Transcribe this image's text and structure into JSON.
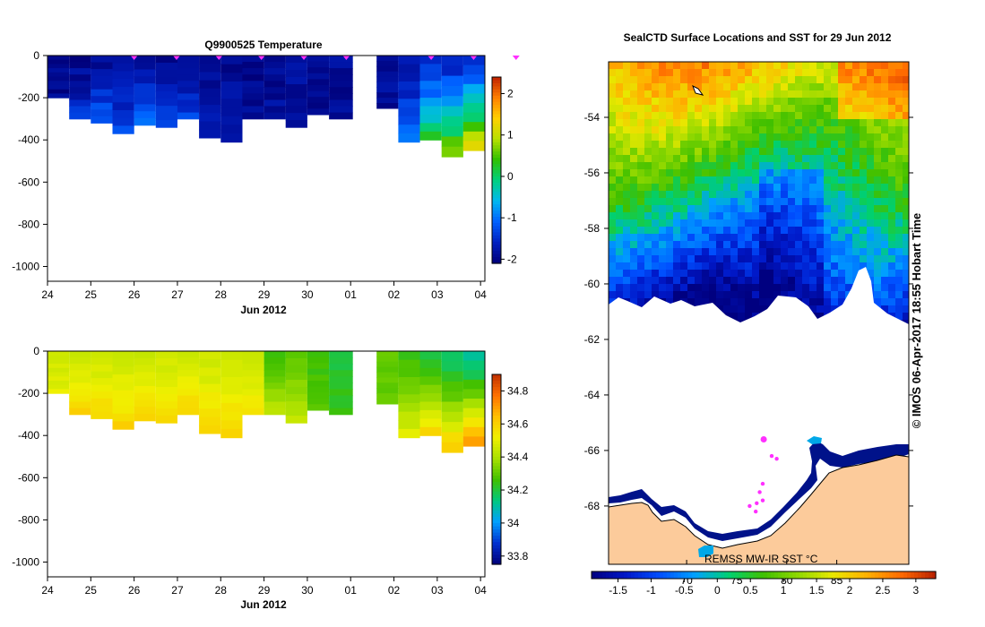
{
  "colors": {
    "land": "#fccb9b",
    "profile_marker": "#ff30ff",
    "sst_scale": [
      "#000080",
      "#0018c8",
      "#0050ff",
      "#00a0ff",
      "#00d070",
      "#40c000",
      "#90d800",
      "#e8e800",
      "#ffb000",
      "#ff6a00",
      "#b82000"
    ],
    "temp_scale": [
      "#00007a",
      "#0020c0",
      "#0060ff",
      "#00b8f0",
      "#00d080",
      "#30c000",
      "#b8e000",
      "#ffd000",
      "#ff8000",
      "#c02000"
    ],
    "sal_scale": [
      "#00007a",
      "#0030d0",
      "#00a0ff",
      "#00c880",
      "#40c000",
      "#a8e000",
      "#f0f000",
      "#ffc000",
      "#ff7000",
      "#c03000"
    ]
  },
  "chart_data": [
    {
      "type": "heatmap",
      "panel": "temperature-section",
      "title": "Q9900525  Temperature",
      "xlabel": "Jun 2012",
      "x_tick_labels": [
        "24",
        "25",
        "26",
        "27",
        "28",
        "29",
        "30",
        "01",
        "02",
        "03",
        "04"
      ],
      "y_tick_labels": [
        "0",
        "-200",
        "-400",
        "-600",
        "-800",
        "-1000"
      ],
      "ylim": [
        -1070,
        0
      ],
      "colorbar": {
        "range": [
          -2.1,
          2.4
        ],
        "tick_labels": [
          "2",
          "1",
          "0",
          "-1",
          "-2"
        ],
        "tick_values": [
          2,
          1,
          0,
          -1,
          -2
        ]
      },
      "days_from_24jun": [
        0,
        0.5,
        1,
        1.5,
        2,
        2.5,
        3,
        3.5,
        4,
        4.5,
        5,
        5.5,
        6,
        6.5,
        7.6,
        8.1,
        8.6,
        9.1,
        9.6
      ],
      "max_depth_m": [
        200,
        300,
        320,
        370,
        330,
        340,
        300,
        390,
        410,
        300,
        300,
        340,
        280,
        300,
        250,
        410,
        400,
        480,
        450
      ],
      "surface_value": [
        -2.0,
        -2.0,
        -1.9,
        -1.9,
        -1.9,
        -2.0,
        -1.9,
        -2.0,
        -1.9,
        -2.0,
        -1.9,
        -1.9,
        -2.0,
        -1.9,
        -1.9,
        -1.8,
        -1.6,
        -1.6,
        -1.4
      ],
      "deep_value": [
        -2.0,
        -1.4,
        -1.0,
        -1.2,
        -0.9,
        -1.1,
        -1.3,
        -1.6,
        -1.7,
        -1.9,
        -1.9,
        -1.9,
        -2.0,
        -1.9,
        -1.9,
        -0.9,
        0.3,
        0.9,
        1.4
      ],
      "profile_markers_at_days": [
        2,
        2.98,
        3.96,
        4.94,
        5.92,
        6.9,
        8.86,
        9.84,
        10.82
      ]
    },
    {
      "type": "heatmap",
      "panel": "salinity-section",
      "title": "",
      "xlabel": "Jun 2012",
      "x_tick_labels": [
        "24",
        "25",
        "26",
        "27",
        "28",
        "29",
        "30",
        "01",
        "02",
        "03",
        "04"
      ],
      "y_tick_labels": [
        "0",
        "-200",
        "-400",
        "-600",
        "-800",
        "-1000"
      ],
      "ylim": [
        -1070,
        0
      ],
      "colorbar": {
        "range": [
          33.75,
          34.9
        ],
        "tick_labels": [
          "34.8",
          "34.6",
          "34.4",
          "34.2",
          "34",
          "33.8"
        ],
        "tick_values": [
          34.8,
          34.6,
          34.4,
          34.2,
          34.0,
          33.8
        ]
      },
      "days_from_24jun": [
        0,
        0.5,
        1,
        1.5,
        2,
        2.5,
        3,
        3.5,
        4,
        4.5,
        5,
        5.5,
        6,
        6.5,
        7.6,
        8.1,
        8.6,
        9.1,
        9.6
      ],
      "max_depth_m": [
        200,
        300,
        320,
        370,
        330,
        340,
        300,
        390,
        410,
        300,
        300,
        340,
        280,
        300,
        250,
        410,
        400,
        480,
        450
      ],
      "surface_value": [
        34.45,
        34.45,
        34.45,
        34.45,
        34.45,
        34.45,
        34.45,
        34.45,
        34.45,
        34.45,
        34.25,
        34.3,
        34.25,
        34.2,
        34.3,
        34.25,
        34.2,
        34.15,
        34.1
      ],
      "deep_value": [
        34.5,
        34.6,
        34.6,
        34.6,
        34.6,
        34.6,
        34.6,
        34.6,
        34.6,
        34.55,
        34.45,
        34.45,
        34.3,
        34.25,
        34.3,
        34.5,
        34.6,
        34.65,
        34.75
      ]
    },
    {
      "type": "heatmap",
      "panel": "sst-map",
      "title": "SealCTD Surface Locations and SST for 29 Jun 2012",
      "lat_tick_labels": [
        "-54",
        "-56",
        "-58",
        "-60",
        "-62",
        "-64",
        "-66",
        "-68"
      ],
      "lat_tick_values": [
        -54,
        -56,
        -58,
        -60,
        -62,
        -64,
        -66,
        -68
      ],
      "lat_range": [
        -70.1,
        -52.0
      ],
      "lon_tick_labels": [
        "70",
        "75",
        "80",
        "85"
      ],
      "lon_tick_values": [
        70,
        75,
        80,
        85
      ],
      "lon_range": [
        62.2,
        92.2
      ],
      "colorbar": {
        "range": [
          -1.9,
          3.3
        ],
        "tick_labels": [
          "-1.5",
          "-1",
          "-0.5",
          "0",
          "0.5",
          "1",
          "1.5",
          "2",
          "2.5",
          "3"
        ],
        "tick_values": [
          -1.5,
          -1,
          -0.5,
          0,
          0.5,
          1,
          1.5,
          2,
          2.5,
          3
        ]
      },
      "source_label": "REMSS MW-IR SST °C",
      "profile_positions_lonlat": [
        [
          77.7,
          -65.6
        ],
        [
          78.5,
          -66.2
        ],
        [
          79.0,
          -66.3
        ],
        [
          77.6,
          -67.2
        ],
        [
          77.3,
          -67.5
        ],
        [
          77.6,
          -67.8
        ],
        [
          77.0,
          -67.9
        ],
        [
          76.9,
          -68.2
        ],
        [
          76.3,
          -68.0
        ]
      ]
    }
  ],
  "credit_text": "© IMOS 06-Apr-2017 18:55 Hobart Time"
}
